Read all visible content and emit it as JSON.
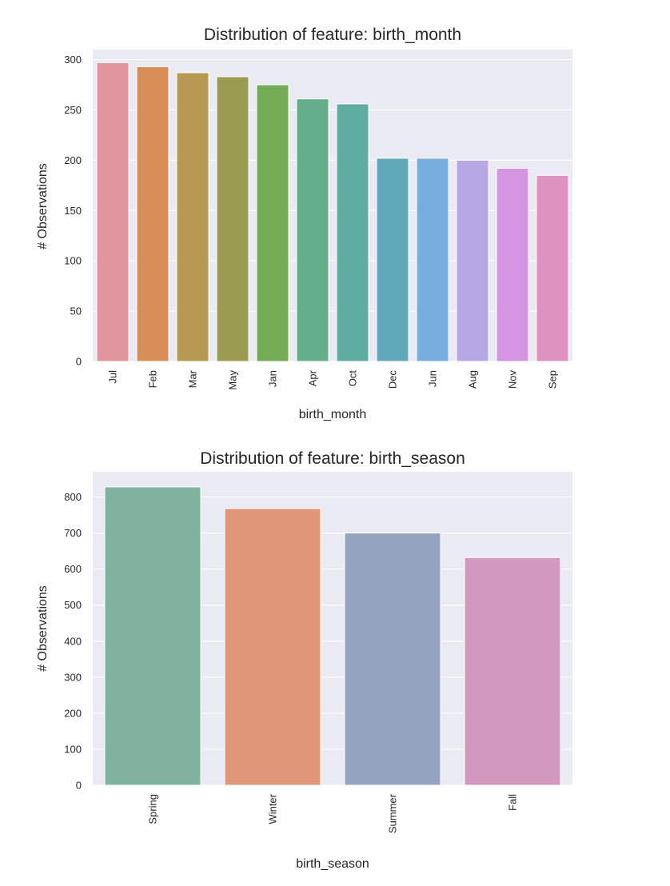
{
  "chart_data": [
    {
      "type": "bar",
      "title": "Distribution of feature: birth_month",
      "xlabel": "birth_month",
      "ylabel": "# Observations",
      "categories": [
        "Jul",
        "Feb",
        "Mar",
        "May",
        "Jan",
        "Apr",
        "Oct",
        "Dec",
        "Jun",
        "Aug",
        "Nov",
        "Sep"
      ],
      "values": [
        297,
        293,
        287,
        283,
        275,
        261,
        256,
        202,
        202,
        200,
        192,
        185
      ],
      "ylim": [
        0,
        310
      ],
      "yticks": [
        0,
        50,
        100,
        150,
        200,
        250,
        300
      ],
      "colors": [
        "#e1969f",
        "#d78f57",
        "#b69a54",
        "#999c51",
        "#74ac55",
        "#64af8a",
        "#5faca3",
        "#60a9bb",
        "#78ade0",
        "#b8a7e5",
        "#d695e3",
        "#df91c0"
      ],
      "xtick_rotation": 90,
      "grid": true
    },
    {
      "type": "bar",
      "title": "Distribution of feature: birth_season",
      "xlabel": "birth_season",
      "ylabel": "# Observations",
      "categories": [
        "Spring",
        "Winter",
        "Summer",
        "Fall"
      ],
      "values": [
        828,
        768,
        700,
        632
      ],
      "ylim": [
        0,
        870
      ],
      "yticks": [
        0,
        100,
        200,
        300,
        400,
        500,
        600,
        700,
        800
      ],
      "colors": [
        "#7fb39f",
        "#df9777",
        "#94a3bf",
        "#d398be"
      ],
      "xtick_rotation": 90,
      "grid": true
    }
  ]
}
